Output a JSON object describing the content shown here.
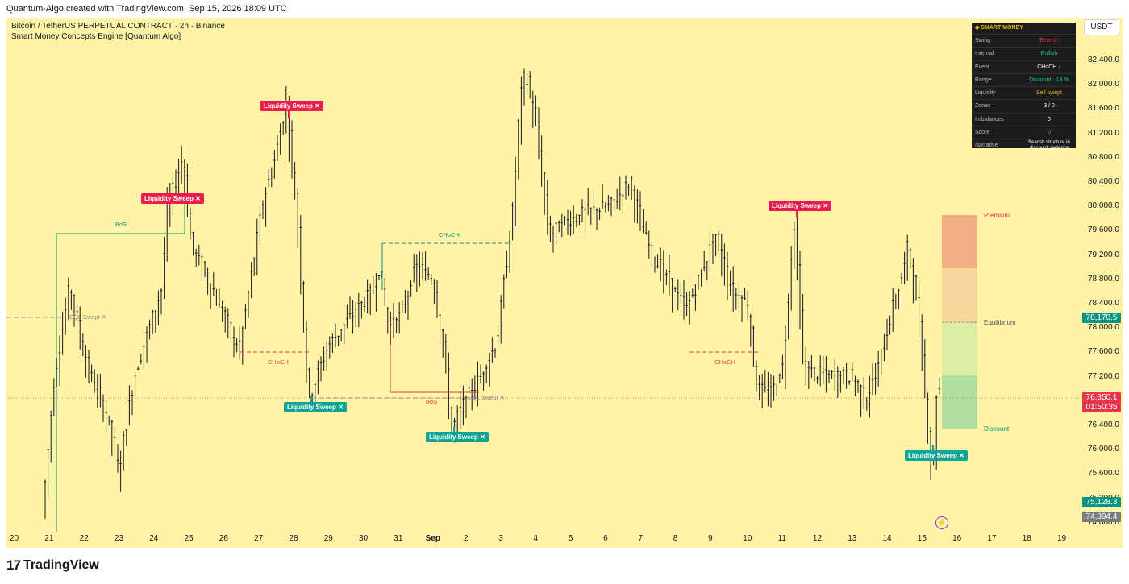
{
  "header": {
    "creator_line": "Quantum-Algo created with TradingView.com, Sep 15, 2026 18:09 UTC"
  },
  "legend": {
    "symbol_line": "Bitcoin / TetherUS PERPETUAL CONTRACT · 2h · Binance",
    "indicator_line": "Smart Money Concepts Engine [Quantum Algo]"
  },
  "currency_button": "USDT",
  "price_axis": {
    "ticks": [
      "82,400.0",
      "82,000.0",
      "81,600.0",
      "81,200.0",
      "80,800.0",
      "80,400.0",
      "80,000.0",
      "79,600.0",
      "79,200.0",
      "78,800.0",
      "78,400.0",
      "78,000.0",
      "77,600.0",
      "77,200.0",
      "76,400.0",
      "76,000.0",
      "75,600.0",
      "75,200.0",
      "74,800.0"
    ],
    "labels": [
      {
        "text": "78,170.5",
        "color": "#0c9483"
      },
      {
        "text": "76,850.1",
        "color": "#e5354b"
      },
      {
        "text": "01:50:35",
        "color": "#e5354b"
      },
      {
        "text": "75,128.3",
        "color": "#0c9483"
      },
      {
        "text": "74,894.4",
        "color": "#7b7b7b"
      }
    ]
  },
  "time_axis": {
    "ticks": [
      "20",
      "21",
      "22",
      "23",
      "24",
      "25",
      "26",
      "27",
      "28",
      "29",
      "30",
      "31",
      "Sep",
      "2",
      "3",
      "4",
      "5",
      "6",
      "7",
      "8",
      "9",
      "10",
      "11",
      "12",
      "13",
      "14",
      "15",
      "16",
      "17",
      "18",
      "19"
    ]
  },
  "smart_money_panel": {
    "title": "◆ SMART MONEY",
    "rows": [
      {
        "key": "Swing",
        "value": "Bearish",
        "color": "#e5354b"
      },
      {
        "key": "Internal",
        "value": "Bullish",
        "color": "#17c3a5"
      },
      {
        "key": "Event",
        "value": "CHoCH ↓",
        "color": "#ffffff"
      },
      {
        "key": "Range",
        "value": "Discount · 14 %",
        "color": "#17c3a5"
      },
      {
        "key": "Liquidity",
        "value": "Sell swept",
        "color": "#f0b90b"
      },
      {
        "key": "Zones",
        "value": "3 / 0",
        "color": "#ffffff"
      },
      {
        "key": "Imbalances",
        "value": "0",
        "color": "#ffffff"
      },
      {
        "key": "Score",
        "value": "0",
        "color": "#888888"
      },
      {
        "key": "Narrative",
        "value": "Bearish structure in discount, patience",
        "color": "#ffffff"
      }
    ]
  },
  "zones": {
    "premium": "Premium",
    "equilibrium": "Equilibrium",
    "discount": "Discount"
  },
  "annotations": {
    "sweep_label": "Liquidity Sweep ✕",
    "bos": "BoS",
    "choch_upper": "CHoCH",
    "choch_lower": "CHoCH",
    "eql_swept": "EQL Swept ✕"
  },
  "footer": {
    "brand": "TradingView",
    "logo_text": "17"
  },
  "chart_data": {
    "type": "candlestick",
    "symbol": "Bitcoin / TetherUS PERPETUAL CONTRACT",
    "interval": "2h",
    "y_range": [
      74800,
      82600
    ],
    "last_price": 76850.1
  }
}
